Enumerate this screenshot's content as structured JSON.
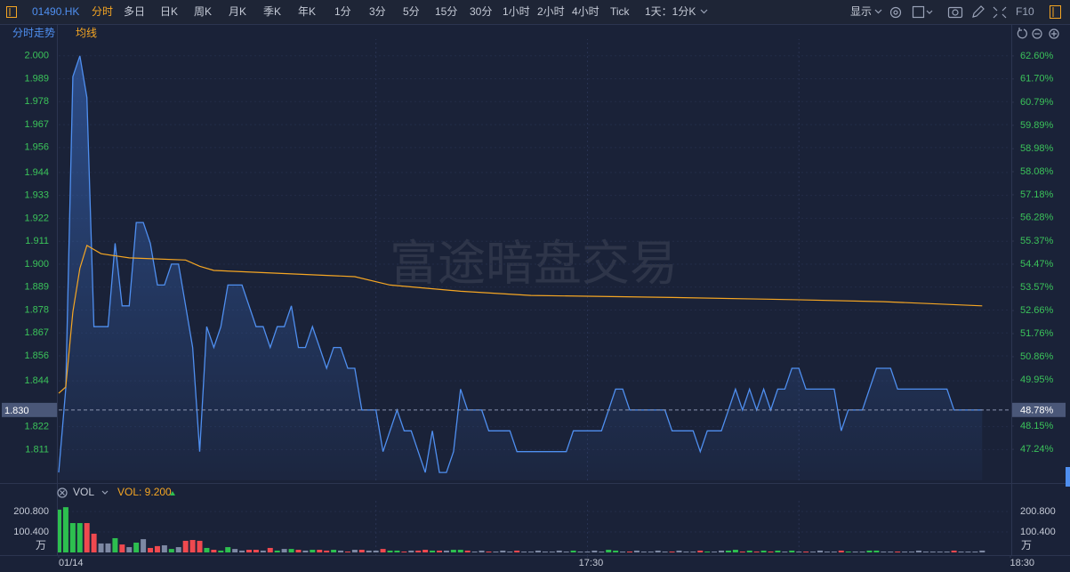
{
  "toolbar": {
    "symbol": "01490.HK",
    "tabs": [
      "分时",
      "多日",
      "日K",
      "周K",
      "月K",
      "季K",
      "年K",
      "1分",
      "3分",
      "5分",
      "15分",
      "30分",
      "1小时",
      "2小时",
      "4小时",
      "Tick",
      "1天：1分K"
    ],
    "active_tab": 0,
    "display": "显示",
    "f10": "F10"
  },
  "watermark": "富途暗盘交易",
  "chart_data": [
    {
      "type": "line",
      "xlim": [
        0,
        135
      ],
      "xgrid": [
        45,
        75,
        105
      ],
      "ylim": [
        1.7962,
        2.0076
      ],
      "yticks": [
        {
          "value": 2,
          "label": "2.000"
        },
        1.989,
        1.978,
        1.967,
        1.956,
        1.944,
        1.933,
        1.922,
        1.911,
        {
          "value": 1.9,
          "label": "1.900"
        },
        1.889,
        1.878,
        1.867,
        1.856,
        1.844,
        1.822,
        1.811
      ],
      "y2lim": [
        46.03,
        63.22
      ],
      "y2ticks": [
        {
          "value": 62.6,
          "label": "62.60%"
        },
        {
          "value": 61.7,
          "label": "61.70%"
        },
        {
          "value": 60.79,
          "label": "60.79%"
        },
        {
          "value": 59.89,
          "label": "59.89%"
        },
        {
          "value": 58.98,
          "label": "58.98%"
        },
        {
          "value": 58.08,
          "label": "58.08%"
        },
        {
          "value": 57.18,
          "label": "57.18%"
        },
        {
          "value": 56.28,
          "label": "56.28%"
        },
        {
          "value": 55.37,
          "label": "55.37%"
        },
        {
          "value": 54.47,
          "label": "54.47%"
        },
        {
          "value": 53.57,
          "label": "53.57%"
        },
        {
          "value": 52.66,
          "label": "52.66%"
        },
        {
          "value": 51.76,
          "label": "51.76%"
        },
        {
          "value": 50.86,
          "label": "50.86%"
        },
        {
          "value": 49.95,
          "label": "49.95%"
        },
        {
          "value": 48.15,
          "label": "48.15%"
        },
        {
          "value": 47.24,
          "label": "47.24%"
        }
      ],
      "current": {
        "value": 1.83,
        "label": "1.830",
        "pct": {
          "value": 48.78,
          "label": "48.78%"
        }
      },
      "series": [
        {
          "name": "分时走势",
          "color": "#4f8ff0",
          "values": [
            1.8,
            1.84,
            1.99,
            2,
            1.98,
            1.87,
            1.87,
            1.87,
            1.91,
            1.88,
            1.88,
            1.92,
            1.92,
            1.91,
            1.89,
            1.89,
            1.9,
            1.9,
            1.88,
            1.86,
            1.81,
            1.87,
            1.86,
            1.87,
            1.89,
            1.89,
            1.89,
            1.88,
            1.87,
            1.87,
            1.86,
            1.87,
            1.87,
            1.88,
            1.86,
            1.86,
            1.87,
            1.86,
            1.85,
            1.86,
            1.86,
            1.85,
            1.85,
            1.83,
            1.83,
            1.83,
            1.81,
            1.82,
            1.83,
            1.82,
            1.82,
            1.81,
            1.8,
            1.82,
            1.8,
            1.8,
            1.81,
            1.84,
            1.83,
            1.83,
            1.83,
            1.82,
            1.82,
            1.82,
            1.82,
            1.81,
            1.81,
            1.81,
            1.81,
            1.81,
            1.81,
            1.81,
            1.81,
            1.82,
            1.82,
            1.82,
            1.82,
            1.82,
            1.83,
            1.84,
            1.84,
            1.83,
            1.83,
            1.83,
            1.83,
            1.83,
            1.83,
            1.82,
            1.82,
            1.82,
            1.82,
            1.81,
            1.82,
            1.82,
            1.82,
            1.83,
            1.84,
            1.83,
            1.84,
            1.83,
            1.84,
            1.83,
            1.84,
            1.84,
            1.85,
            1.85,
            1.84,
            1.84,
            1.84,
            1.84,
            1.84,
            1.82,
            1.83,
            1.83,
            1.83,
            1.84,
            1.85,
            1.85,
            1.85,
            1.84,
            1.84,
            1.84,
            1.84,
            1.84,
            1.84,
            1.84,
            1.84,
            1.83,
            1.83,
            1.83,
            1.83,
            1.83
          ]
        },
        {
          "name": "均线",
          "color": "#f5a623",
          "x": [
            0,
            1,
            2,
            3,
            4,
            6,
            10,
            18,
            20,
            22,
            42,
            47,
            57,
            67,
            87,
            104,
            117,
            131
          ],
          "values": [
            1.838,
            1.841,
            1.877,
            1.898,
            1.909,
            1.905,
            1.903,
            1.902,
            1.899,
            1.897,
            1.894,
            1.89,
            1.887,
            1.885,
            1.884,
            1.883,
            1.882,
            1.88
          ]
        }
      ]
    },
    {
      "type": "bar",
      "indicator": "VOL",
      "readout": "VOL: 9.200",
      "unit": "万",
      "xlim": [
        0,
        135
      ],
      "xgrid": [
        45,
        75,
        105
      ],
      "xticks": [
        {
          "value": 0,
          "label": "01/14"
        },
        {
          "value": 75,
          "label": "17:30"
        },
        {
          "value": 135,
          "label": "18:30"
        }
      ],
      "ylim": [
        0,
        244.4
      ],
      "yticks": [
        {
          "value": 200.8,
          "label": "200.800"
        },
        {
          "value": 100.4,
          "label": "100.400"
        }
      ],
      "up_color": "#2dbf4f",
      "down_color": "#f0494f",
      "flat_color": "#7d88a3",
      "values": [
        210,
        222,
        144,
        144,
        144,
        92,
        44,
        44,
        70,
        39,
        26,
        48,
        65,
        22,
        31,
        35,
        17,
        26,
        57,
        61,
        57,
        22,
        13,
        9,
        26,
        17,
        9,
        13,
        13,
        9,
        22,
        9,
        17,
        17,
        13,
        9,
        13,
        13,
        9,
        13,
        9,
        4.4,
        13,
        13,
        9,
        9,
        17,
        9,
        9,
        4.4,
        9,
        9,
        13,
        9,
        9,
        9,
        13,
        13,
        9,
        4.4,
        9,
        4.4,
        4.4,
        9,
        4.4,
        9,
        4.4,
        4.4,
        9,
        4.4,
        4.4,
        9,
        4.4,
        9,
        4.4,
        4.4,
        9,
        4.4,
        13,
        9,
        4.4,
        4.4,
        9,
        4.4,
        4.4,
        9,
        4.4,
        4.4,
        9,
        4.4,
        4.4,
        9,
        4.4,
        4.4,
        9,
        9,
        13,
        4.4,
        9,
        4.4,
        9,
        4.4,
        9,
        4.4,
        9,
        4.4,
        4.4,
        4.4,
        9,
        4.4,
        4.4,
        9,
        4.4,
        4.4,
        4.4,
        9,
        9,
        4.4,
        4.4,
        4.4,
        4.4,
        4.4,
        9,
        4.4,
        4.4,
        4.4,
        4.4,
        9,
        4.4,
        4.4,
        4.4,
        9.2
      ]
    }
  ]
}
